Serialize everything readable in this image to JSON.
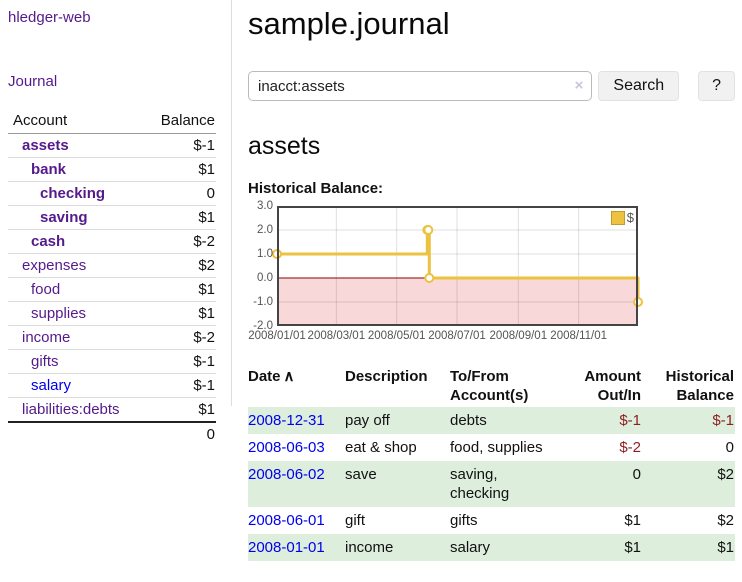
{
  "app": {
    "title": "hledger-web"
  },
  "sidebar": {
    "journal_link": "Journal",
    "accounts": {
      "headers": {
        "account": "Account",
        "balance": "Balance"
      },
      "rows": [
        {
          "account": "assets",
          "balance": "$-1"
        },
        {
          "account": "bank",
          "balance": "$1"
        },
        {
          "account": "checking",
          "balance": "0"
        },
        {
          "account": "saving",
          "balance": "$1"
        },
        {
          "account": "cash",
          "balance": "$-2"
        },
        {
          "account": "expenses",
          "balance": "$2"
        },
        {
          "account": "food",
          "balance": "$1"
        },
        {
          "account": "supplies",
          "balance": "$1"
        },
        {
          "account": "income",
          "balance": "$-2"
        },
        {
          "account": "gifts",
          "balance": "$-1"
        },
        {
          "account": "salary",
          "balance": "$-1"
        },
        {
          "account": "liabilities:debts",
          "balance": "$1"
        }
      ],
      "total": "0"
    }
  },
  "main": {
    "title": "sample.journal",
    "search": {
      "value": "inacct:assets",
      "clear_icon": "×",
      "search_button": "Search",
      "help_button": "?"
    },
    "account_heading": "assets",
    "section_label": "Historical Balance:"
  },
  "chart_data": {
    "type": "line",
    "step": true,
    "title": "Historical Balance",
    "legend": "$",
    "legend_position": "top-right",
    "grid": true,
    "series": [
      {
        "name": "$",
        "color": "#edc240",
        "points": [
          [
            "2008-01-01",
            1
          ],
          [
            "2008-06-01",
            2
          ],
          [
            "2008-06-02",
            2
          ],
          [
            "2008-06-03",
            0
          ],
          [
            "2008-12-31",
            -1
          ]
        ]
      }
    ],
    "xlim": [
      "2008-01-01",
      "2008-12-31"
    ],
    "ylim": [
      -2,
      3
    ],
    "x_tick_dates": [
      "2008-01-01",
      "2008-03-01",
      "2008-05-01",
      "2008-07-01",
      "2008-09-01",
      "2008-11-01"
    ],
    "x_tick_labels": [
      "2008/01/01",
      "2008/03/01",
      "2008/05/01",
      "2008/07/01",
      "2008/09/01",
      "2008/11/01"
    ],
    "y_ticks": [
      "3.0",
      "2.0",
      "1.0",
      "0.0",
      "-1.0",
      "-2.0"
    ],
    "zero_line_color": "#8b0000",
    "negative_region_fill": "#f8d8d8",
    "frame_color": "#444444"
  },
  "register": {
    "headers": {
      "date": "Date",
      "description": "Description",
      "accounts": "To/From Account(s)",
      "amount": "Amount Out/In",
      "balance": "Historical Balance"
    },
    "sort_icon": "∧",
    "rows": [
      {
        "date": "2008-12-31",
        "description": "pay off",
        "accounts": "debts",
        "amount": "$-1",
        "balance": "$-1"
      },
      {
        "date": "2008-06-03",
        "description": "eat & shop",
        "accounts": "food, supplies",
        "amount": "$-2",
        "balance": "0"
      },
      {
        "date": "2008-06-02",
        "description": "save",
        "accounts": "saving, checking",
        "amount": "0",
        "balance": "$2"
      },
      {
        "date": "2008-06-01",
        "description": "gift",
        "accounts": "gifts",
        "amount": "$1",
        "balance": "$2"
      },
      {
        "date": "2008-01-01",
        "description": "income",
        "accounts": "salary",
        "amount": "$1",
        "balance": "$1"
      }
    ]
  },
  "colors": {
    "link_purple": "#551a8b",
    "link_blue": "#0000ee",
    "negative_strong": "#8d1f1f",
    "negative_muted": "#b5737b",
    "row_stripe_green": "#ddeedd",
    "chart_line": "#edc240"
  }
}
